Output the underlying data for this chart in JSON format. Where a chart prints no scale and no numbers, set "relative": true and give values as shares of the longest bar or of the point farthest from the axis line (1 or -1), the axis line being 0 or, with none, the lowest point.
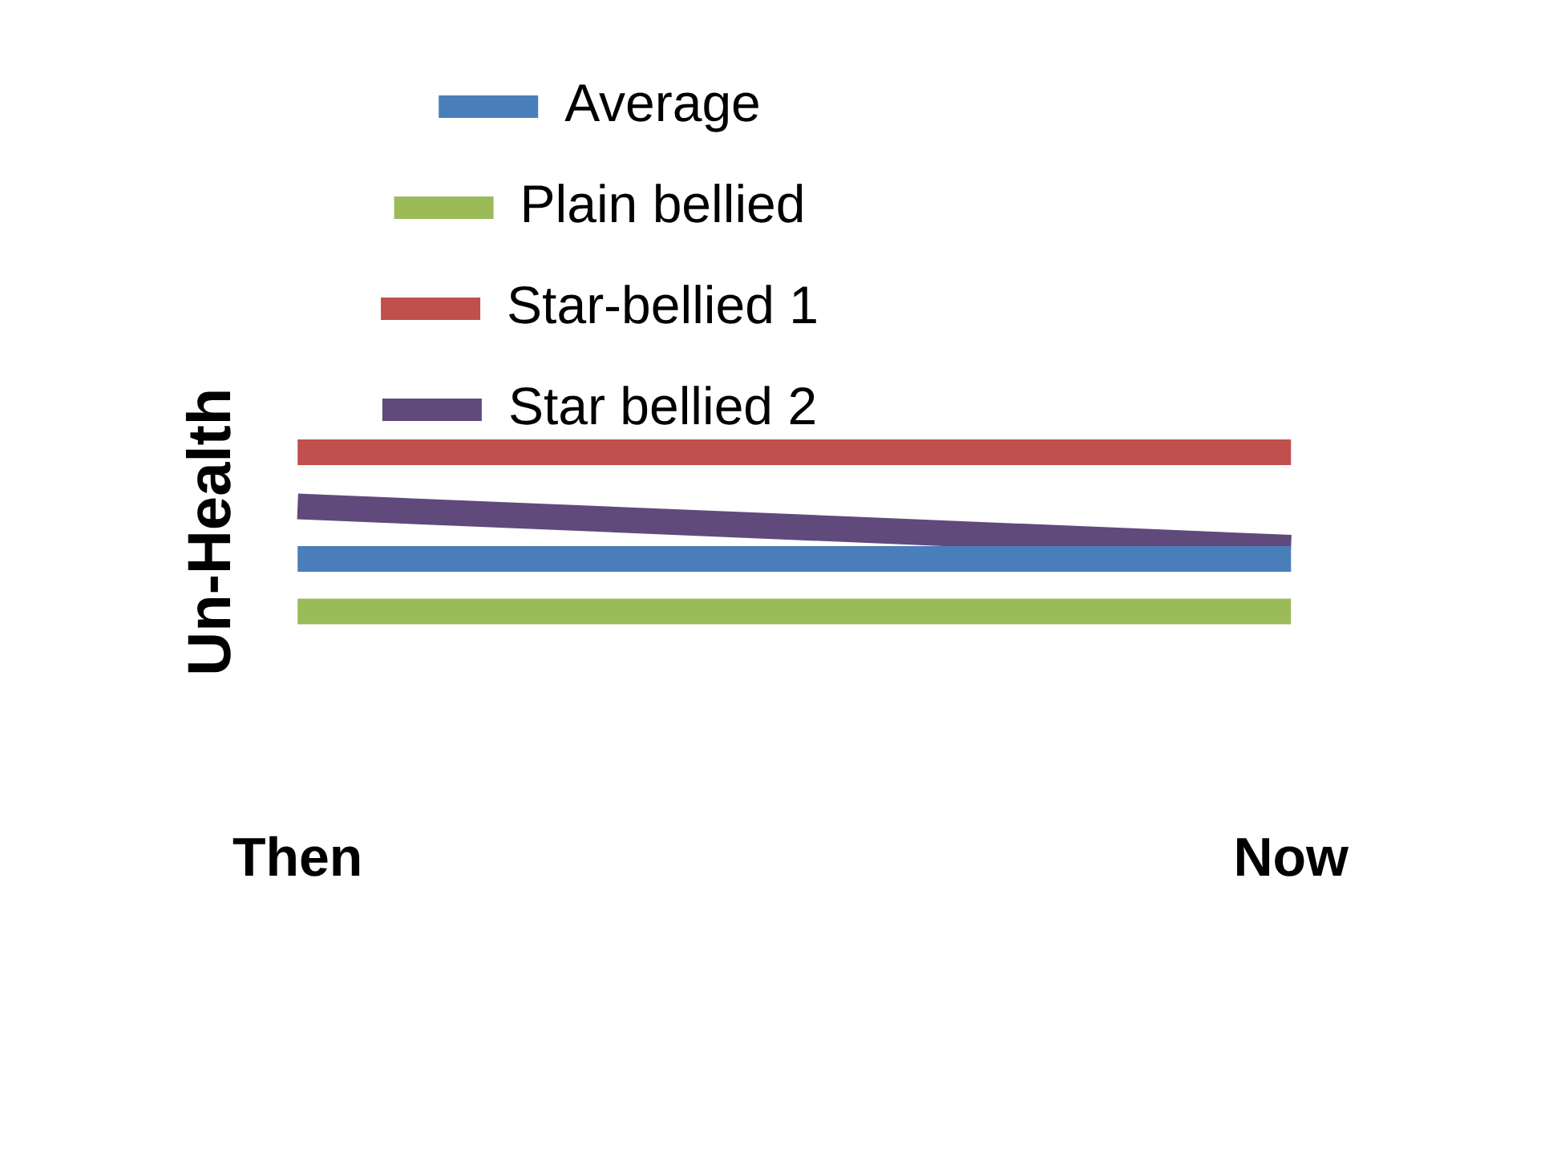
{
  "chart_data": {
    "type": "line",
    "relative": true,
    "ylabel": "Un-Health",
    "categories": [
      "Then",
      "Now"
    ],
    "legend": "top",
    "marker": "none",
    "line_style": "solid",
    "grid": false,
    "series": [
      {
        "name": "Average",
        "color": "#4a7ebb",
        "values": [
          0.33,
          0.33
        ]
      },
      {
        "name": "Plain bellied",
        "color": "#9bbb59",
        "values": [
          0,
          0
        ]
      },
      {
        "name": "Star-bellied 1",
        "color": "#c0504d",
        "values": [
          1,
          1
        ]
      },
      {
        "name": "Star bellied 2",
        "color": "#604a7b",
        "values": [
          0.66,
          0.4
        ]
      }
    ]
  }
}
